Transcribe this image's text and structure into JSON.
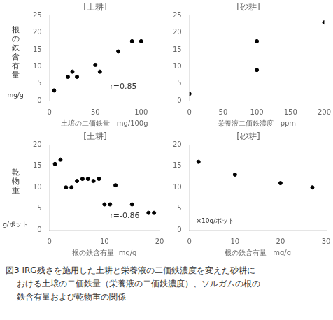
{
  "chart_data": [
    {
      "type": "scatter",
      "title": "[土耕]",
      "xlabel": "土壌の二価鉄量   mg/100g",
      "ylabel": "根の鉄含有量",
      "ylabel_unit": "mg/g",
      "x": [
        5,
        20,
        25,
        30,
        50,
        55,
        75,
        90,
        100
      ],
      "values": [
        3,
        7,
        8.5,
        7,
        10.5,
        8.5,
        14.5,
        17.5,
        17.5
      ],
      "annotation": "r=0.85",
      "color": "black",
      "xlim": [
        0,
        120
      ],
      "ylim": [
        0,
        25
      ],
      "xticks": [
        0,
        50,
        100
      ],
      "yticks": [
        0,
        5,
        10,
        15,
        20,
        25
      ],
      "grid": false
    },
    {
      "type": "scatter",
      "title": "[砂耕]",
      "xlabel": "栄養液二価鉄濃度   ppm",
      "x": [
        0,
        100,
        100,
        200
      ],
      "values": [
        2,
        9,
        17.5,
        23
      ],
      "color": "black",
      "xlim": [
        0,
        200
      ],
      "ylim": [
        0,
        25
      ],
      "xticks": [
        0,
        50,
        100,
        150,
        200
      ],
      "yticks": [
        0,
        5,
        10,
        15,
        20,
        25
      ],
      "grid": false
    },
    {
      "type": "scatter",
      "title": "[土耕]",
      "xlabel": "根の鉄含有量  mg/g",
      "ylabel": "乾物重",
      "ylabel_unit": "g/ポット",
      "x": [
        1,
        2,
        3,
        4,
        5,
        6,
        7,
        8,
        9,
        10,
        11,
        12,
        15,
        18,
        19
      ],
      "values": [
        15.5,
        16.5,
        10,
        10,
        11.5,
        12,
        12,
        11.5,
        12,
        6,
        6,
        10.5,
        6,
        4,
        4
      ],
      "annotation": "r=-0.86",
      "color": "black",
      "xlim": [
        0,
        20
      ],
      "ylim": [
        0,
        20
      ],
      "xticks": [
        0,
        10,
        20
      ],
      "yticks": [
        0,
        5,
        10,
        15,
        20
      ],
      "grid": false
    },
    {
      "type": "scatter",
      "title": "[砂耕]",
      "xlabel": "根の鉄含有量   mg/g",
      "ylabel_unit": "×10g/ポット",
      "x": [
        2,
        10,
        20,
        27
      ],
      "values": [
        16,
        13,
        11,
        10
      ],
      "color": "black",
      "xlim": [
        0,
        30
      ],
      "ylim": [
        0,
        20
      ],
      "xticks": [
        0,
        10,
        20,
        30
      ],
      "yticks": [
        0,
        5,
        10,
        15,
        20
      ],
      "grid": false
    }
  ],
  "caption": [
    "図3   IRG残さを施用した土耕と栄養液の二価鉄濃度を変えた砂耕に",
    "おける土壌の二価鉄量（栄養液の二価鉄濃度）、ソルガムの根の",
    "鉄含有量および乾物重の関係"
  ]
}
